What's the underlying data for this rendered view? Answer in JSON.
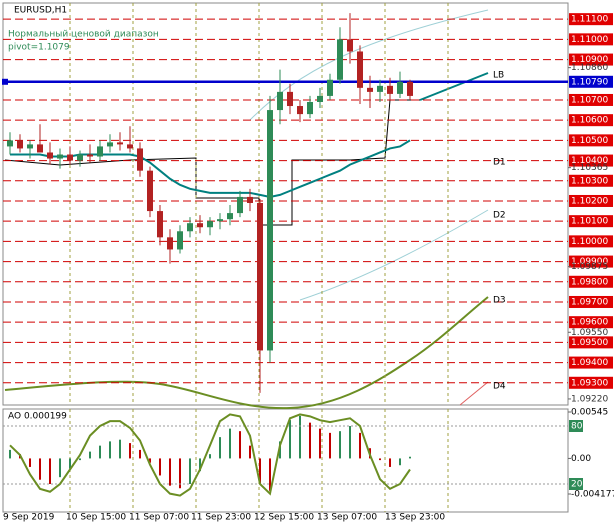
{
  "chart_data": {
    "type": "candlestick",
    "symbol": "EURUSD,H1",
    "subtitle": "Нормальный ценовой диапазон",
    "pivot_text": "pivot=1.1079",
    "ylim": [
      1.0919,
      1.1118
    ],
    "levels": [
      {
        "value": 1.111,
        "label": "1.11100"
      },
      {
        "value": 1.11,
        "label": "1.11000"
      },
      {
        "value": 1.109,
        "label": "1.10900"
      },
      {
        "value": 1.107,
        "label": "1.10700"
      },
      {
        "value": 1.106,
        "label": "1.10600"
      },
      {
        "value": 1.105,
        "label": "1.10500"
      },
      {
        "value": 1.104,
        "label": "1.10400"
      },
      {
        "value": 1.103,
        "label": "1.10300"
      },
      {
        "value": 1.102,
        "label": "1.10200"
      },
      {
        "value": 1.101,
        "label": "1.10100"
      },
      {
        "value": 1.1,
        "label": "1.10000"
      },
      {
        "value": 1.099,
        "label": "1.09900"
      },
      {
        "value": 1.098,
        "label": "1.09800"
      },
      {
        "value": 1.097,
        "label": "1.09700"
      },
      {
        "value": 1.096,
        "label": "1.09600"
      },
      {
        "value": 1.095,
        "label": "1.09500"
      },
      {
        "value": 1.094,
        "label": "1.09400"
      },
      {
        "value": 1.093,
        "label": "1.09300"
      }
    ],
    "lb_level": {
      "value": 1.1079,
      "label": "1.10790"
    },
    "yticks": [
      {
        "value": 1.1086,
        "label": "1.10860"
      },
      {
        "value": 1.10365,
        "label": "1.10365"
      },
      {
        "value": 1.09875,
        "label": "1.09875"
      },
      {
        "value": 1.0955,
        "label": "1.09550"
      },
      {
        "value": 1.0922,
        "label": "1.09220"
      }
    ],
    "annotations": [
      "LB",
      "D1",
      "D2",
      "D3",
      "D4"
    ],
    "x_labels": [
      "9 Sep 2019",
      "10 Sep 15:00",
      "11 Sep 07:00",
      "11 Sep 23:00",
      "12 Sep 15:00",
      "13 Sep 07:00",
      "13 Sep 23:00"
    ],
    "open": [
      1.1047,
      1.105,
      1.1046,
      1.1048,
      1.1044,
      1.1041,
      1.1043,
      1.104,
      1.1043,
      1.1042,
      1.1047,
      1.1049,
      1.1048,
      1.1046,
      1.1035,
      1.1015,
      1.1002,
      1.0996,
      1.1005,
      1.1009,
      1.1007,
      1.101,
      1.1011,
      1.1014,
      1.1022,
      1.1019,
      1.0946,
      1.1065,
      1.1074,
      1.1067,
      1.1063,
      1.1069,
      1.1072,
      1.108,
      1.11,
      1.1094,
      1.1076,
      1.1074,
      1.1077,
      1.1073,
      1.1079
    ],
    "high": [
      1.1054,
      1.1053,
      1.105,
      1.1058,
      1.1049,
      1.1046,
      1.1047,
      1.1045,
      1.1048,
      1.105,
      1.1053,
      1.1054,
      1.1057,
      1.1049,
      1.1037,
      1.1018,
      1.1006,
      1.1008,
      1.1012,
      1.1013,
      1.1012,
      1.1014,
      1.1018,
      1.1025,
      1.1026,
      1.1021,
      1.1072,
      1.1085,
      1.1078,
      1.107,
      1.1072,
      1.1076,
      1.1083,
      1.1106,
      1.1113,
      1.1097,
      1.1082,
      1.108,
      1.1081,
      1.1084,
      1.108
    ],
    "low": [
      1.1043,
      1.1044,
      1.1041,
      1.1045,
      1.1038,
      1.1036,
      1.1038,
      1.1037,
      1.1039,
      1.104,
      1.1044,
      1.1045,
      1.1044,
      1.1032,
      1.1012,
      1.0998,
      1.0989,
      1.0994,
      1.1002,
      1.1004,
      1.1003,
      1.1006,
      1.1008,
      1.1012,
      1.1015,
      1.0925,
      1.094,
      1.1058,
      1.1063,
      1.1059,
      1.1061,
      1.1066,
      1.107,
      1.1078,
      1.1088,
      1.1068,
      1.1066,
      1.1069,
      1.107,
      1.1071,
      1.107
    ],
    "close": [
      1.105,
      1.1046,
      1.1048,
      1.1044,
      1.1041,
      1.1043,
      1.104,
      1.1043,
      1.1042,
      1.1047,
      1.1049,
      1.1048,
      1.1046,
      1.1035,
      1.1015,
      1.1002,
      1.0996,
      1.1005,
      1.1009,
      1.1007,
      1.101,
      1.1011,
      1.1014,
      1.1022,
      1.1019,
      1.0946,
      1.1065,
      1.1074,
      1.1067,
      1.1063,
      1.1069,
      1.1072,
      1.108,
      1.11,
      1.1094,
      1.1076,
      1.1074,
      1.1077,
      1.1073,
      1.1079,
      1.1072
    ],
    "ma": [
      1.1043,
      1.1043,
      1.1043,
      1.1043,
      1.1042,
      1.1042,
      1.1042,
      1.1043,
      1.1043,
      1.1043,
      1.1043,
      1.1043,
      1.1043,
      1.1042,
      1.1039,
      1.1035,
      1.1031,
      1.1028,
      1.1026,
      1.1025,
      1.1024,
      1.1024,
      1.1024,
      1.1024,
      1.1024,
      1.1023,
      1.1022,
      1.1023,
      1.1025,
      1.1027,
      1.1029,
      1.1031,
      1.1033,
      1.1035,
      1.1038,
      1.104,
      1.1042,
      1.1044,
      1.1046,
      1.1047,
      1.105
    ],
    "ao_label": "AO 0.000199",
    "ao_ylim": [
      -0.004177,
      0.00545
    ],
    "ao_yticks": [
      0.00545,
      {
        "value": 0,
        "label": "0.00"
      },
      -0.004177
    ],
    "ao": [
      0.001,
      0.0005,
      -0.001,
      -0.0025,
      -0.003,
      -0.0022,
      -0.0012,
      -0.0002,
      0.0008,
      0.0015,
      0.002,
      0.0022,
      0.0018,
      0.001,
      -0.0005,
      -0.002,
      -0.0032,
      -0.0035,
      -0.003,
      -0.0015,
      0.0005,
      0.0025,
      0.0035,
      0.0032,
      0.0015,
      -0.003,
      -0.0038,
      0.002,
      0.0045,
      0.005,
      0.0042,
      0.0035,
      0.003,
      0.0032,
      0.0038,
      0.003,
      0.0012,
      -0.0002,
      -0.001,
      -0.0008,
      0.000199
    ],
    "stoch_yticks": [
      80,
      20
    ],
    "stoch": [
      60,
      50,
      30,
      15,
      12,
      20,
      35,
      50,
      70,
      80,
      85,
      85,
      78,
      65,
      40,
      20,
      10,
      8,
      15,
      35,
      60,
      85,
      92,
      90,
      70,
      20,
      10,
      60,
      88,
      92,
      90,
      86,
      84,
      86,
      88,
      80,
      50,
      25,
      15,
      20,
      35
    ]
  }
}
